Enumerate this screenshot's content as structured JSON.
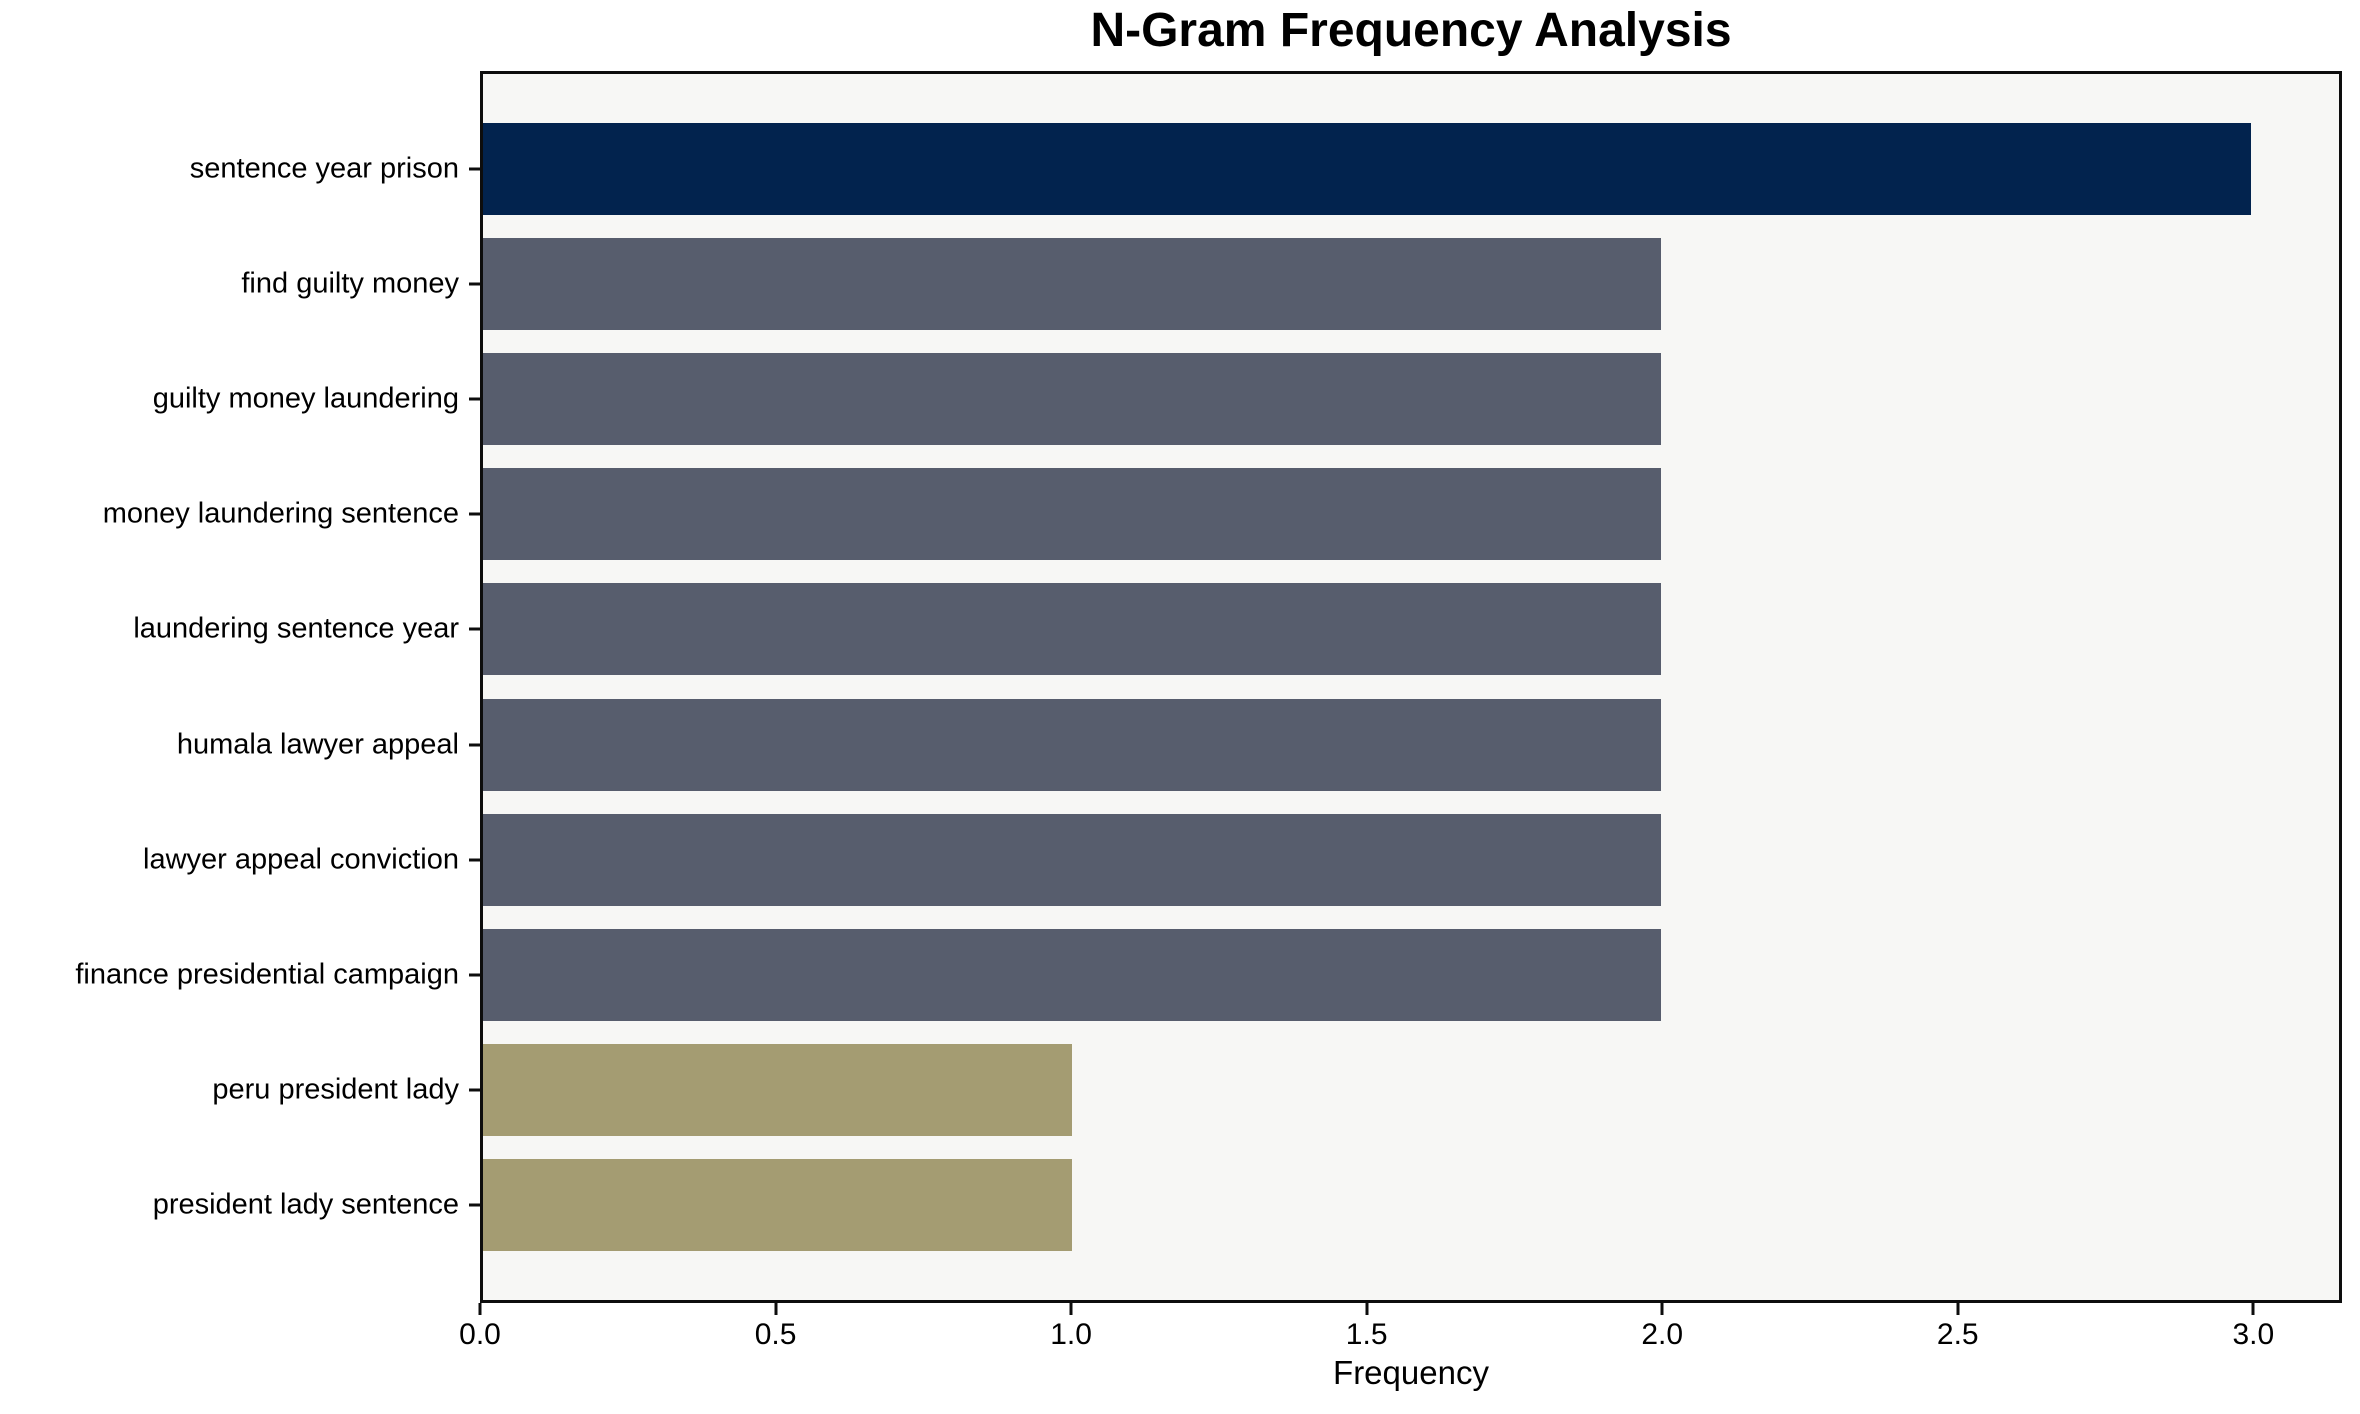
{
  "figure": {
    "background_color": "#ffffff",
    "plot_background_color": "#f7f7f5",
    "spine_color": "#0d0d0d",
    "text_color": "#000000"
  },
  "chart_data": {
    "type": "bar",
    "orientation": "horizontal",
    "title": "N-Gram Frequency Analysis",
    "xlabel": "Frequency",
    "ylabel": "",
    "categories": [
      "sentence year prison",
      "find guilty money",
      "guilty money laundering",
      "money laundering sentence",
      "laundering sentence year",
      "humala lawyer appeal",
      "lawyer appeal conviction",
      "finance presidential campaign",
      "peru president lady",
      "president lady sentence"
    ],
    "values": [
      3,
      2,
      2,
      2,
      2,
      2,
      2,
      2,
      1,
      1
    ],
    "bar_colors": [
      "#02234e",
      "#575d6d",
      "#575d6d",
      "#575d6d",
      "#575d6d",
      "#575d6d",
      "#575d6d",
      "#575d6d",
      "#a49c72",
      "#a49c72"
    ],
    "xticks": [
      "0.0",
      "0.5",
      "1.0",
      "1.5",
      "2.0",
      "2.5",
      "3.0"
    ],
    "xtick_values": [
      0,
      0.5,
      1,
      1.5,
      2,
      2.5,
      3
    ],
    "xlim": [
      0,
      3.15
    ],
    "grid": false,
    "legend_position": "none"
  }
}
